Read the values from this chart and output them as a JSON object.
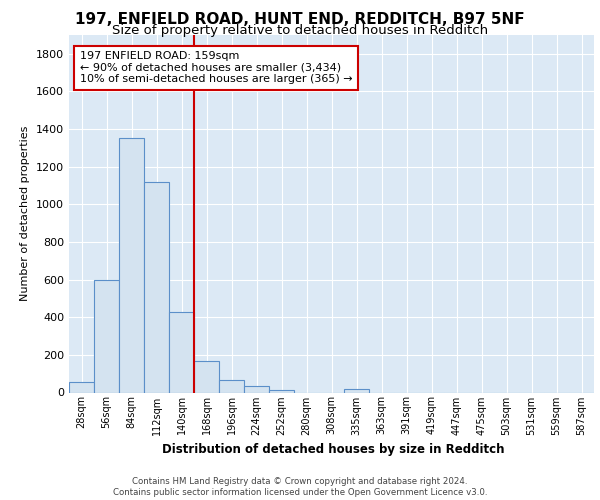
{
  "title1": "197, ENFIELD ROAD, HUNT END, REDDITCH, B97 5NF",
  "title2": "Size of property relative to detached houses in Redditch",
  "xlabel": "Distribution of detached houses by size in Redditch",
  "ylabel": "Number of detached properties",
  "bin_labels": [
    "28sqm",
    "56sqm",
    "84sqm",
    "112sqm",
    "140sqm",
    "168sqm",
    "196sqm",
    "224sqm",
    "252sqm",
    "280sqm",
    "308sqm",
    "335sqm",
    "363sqm",
    "391sqm",
    "419sqm",
    "447sqm",
    "475sqm",
    "503sqm",
    "531sqm",
    "559sqm",
    "587sqm"
  ],
  "bar_values": [
    55,
    600,
    1350,
    1120,
    430,
    170,
    65,
    35,
    15,
    0,
    0,
    20,
    0,
    0,
    0,
    0,
    0,
    0,
    0,
    0,
    0
  ],
  "bar_color": "#d4e3f0",
  "bar_edge_color": "#5b8fc9",
  "red_line_bin_index": 5,
  "annotation_text": "197 ENFIELD ROAD: 159sqm\n← 90% of detached houses are smaller (3,434)\n10% of semi-detached houses are larger (365) →",
  "annotation_box_color": "#ffffff",
  "annotation_box_edge": "#cc0000",
  "footer_text": "Contains HM Land Registry data © Crown copyright and database right 2024.\nContains public sector information licensed under the Open Government Licence v3.0.",
  "ylim": [
    0,
    1900
  ],
  "yticks": [
    0,
    200,
    400,
    600,
    800,
    1000,
    1200,
    1400,
    1600,
    1800
  ],
  "background_color": "#dce9f5",
  "grid_color": "#ffffff",
  "title1_fontsize": 11,
  "title2_fontsize": 9.5
}
